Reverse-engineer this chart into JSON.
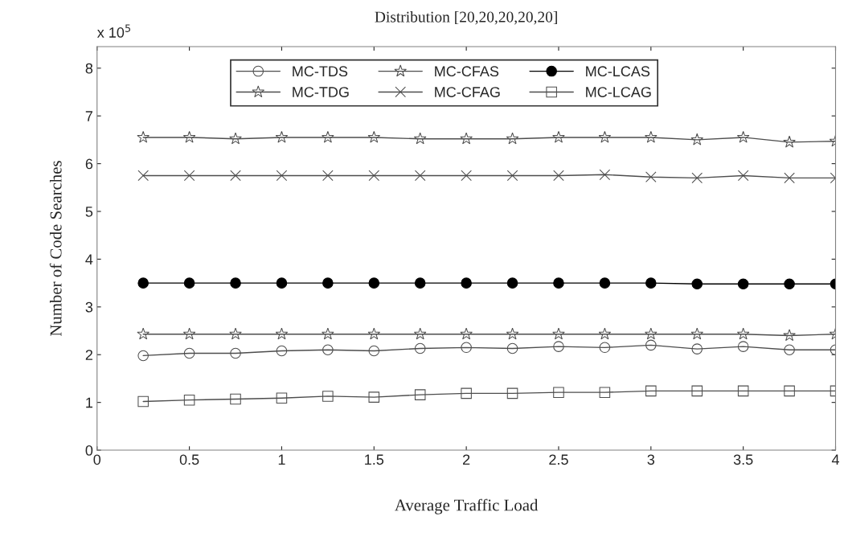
{
  "chart_data": {
    "type": "line",
    "title": "Distribution [20,20,20,20,20]",
    "xlabel": "Average Traffic Load",
    "ylabel": "Number of Code Searches",
    "annotations": [
      "x 10$^{5}$"
    ],
    "x": [
      0.25,
      0.5,
      0.75,
      1,
      1.25,
      1.5,
      1.75,
      2,
      2.25,
      2.5,
      2.75,
      3,
      3.25,
      3.5,
      3.75,
      4
    ],
    "xlim": [
      0,
      4
    ],
    "xticks": [
      0,
      0.5,
      1,
      1.5,
      2,
      2.5,
      3,
      3.5,
      4
    ],
    "ylim": [
      0,
      8.45
    ],
    "yticks": [
      0,
      1,
      2,
      3,
      4,
      5,
      6,
      7,
      8
    ],
    "grid": false,
    "legend": "top",
    "line_style": "solid",
    "series": [
      {
        "name": "MC-TDS",
        "color": "#4d4d4d",
        "marker": "circle",
        "values": [
          1.98,
          2.03,
          2.03,
          2.08,
          2.1,
          2.08,
          2.13,
          2.15,
          2.13,
          2.17,
          2.15,
          2.2,
          2.12,
          2.17,
          2.1,
          2.1
        ]
      },
      {
        "name": "MC-TDG",
        "color": "#4d4d4d",
        "marker": "star",
        "values": [
          2.43,
          2.43,
          2.43,
          2.43,
          2.43,
          2.43,
          2.43,
          2.43,
          2.43,
          2.43,
          2.43,
          2.43,
          2.43,
          2.43,
          2.4,
          2.43
        ]
      },
      {
        "name": "MC-CFAS",
        "color": "#4d4d4d",
        "marker": "star",
        "values": [
          6.55,
          6.55,
          6.52,
          6.55,
          6.55,
          6.55,
          6.52,
          6.52,
          6.52,
          6.55,
          6.55,
          6.55,
          6.5,
          6.55,
          6.45,
          6.47
        ]
      },
      {
        "name": "MC-CFAG",
        "color": "#4d4d4d",
        "marker": "cross",
        "values": [
          5.75,
          5.75,
          5.75,
          5.75,
          5.75,
          5.75,
          5.75,
          5.75,
          5.75,
          5.75,
          5.77,
          5.72,
          5.7,
          5.75,
          5.7,
          5.7
        ]
      },
      {
        "name": "MC-LCAS",
        "color": "#000000",
        "marker": "circle",
        "values": [
          3.5,
          3.5,
          3.5,
          3.5,
          3.5,
          3.5,
          3.5,
          3.5,
          3.5,
          3.5,
          3.5,
          3.5,
          3.48,
          3.48,
          3.48,
          3.48
        ]
      },
      {
        "name": "MC-LCAG",
        "color": "#4d4d4d",
        "marker": "square",
        "values": [
          1.02,
          1.05,
          1.07,
          1.09,
          1.13,
          1.11,
          1.16,
          1.19,
          1.19,
          1.21,
          1.21,
          1.24,
          1.24,
          1.24,
          1.24,
          1.24
        ]
      }
    ]
  }
}
